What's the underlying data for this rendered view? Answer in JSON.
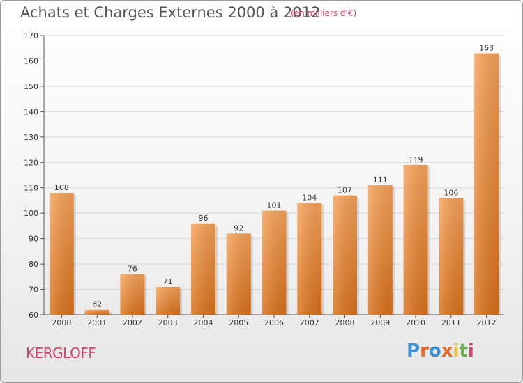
{
  "chart_data": {
    "type": "bar",
    "title": "Achats et Charges Externes 2000 à 2012",
    "subtitle": "(en milliers d'€)",
    "categories": [
      "2000",
      "2001",
      "2002",
      "2003",
      "2004",
      "2005",
      "2006",
      "2007",
      "2008",
      "2009",
      "2010",
      "2011",
      "2012"
    ],
    "values": [
      108,
      62,
      76,
      71,
      96,
      92,
      101,
      104,
      107,
      111,
      119,
      106,
      163
    ],
    "ylim": [
      60,
      170
    ],
    "yticks": [
      60,
      70,
      80,
      90,
      100,
      110,
      120,
      130,
      140,
      150,
      160,
      170
    ],
    "grid": true,
    "bar_color": "#f0882e"
  },
  "commune": "KERGLOFF",
  "logo": {
    "letters": [
      "P",
      "r",
      "o",
      "x",
      "i",
      "t",
      "i"
    ],
    "colors": [
      "#3a8fd6",
      "#e8692a",
      "#3a8fd6",
      "#e8692a",
      "#e8c23a",
      "#6ab04c",
      "#d0436a"
    ]
  }
}
